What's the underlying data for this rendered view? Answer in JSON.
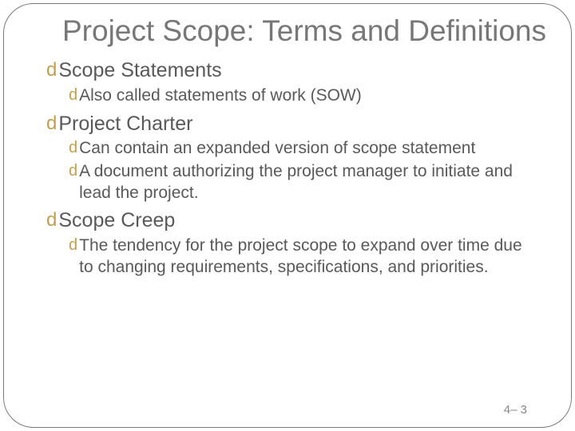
{
  "title": "Project Scope: Terms and Definitions",
  "items": [
    {
      "label": "Scope Statements",
      "subs": [
        {
          "text": "Also called statements of work (SOW)"
        }
      ]
    },
    {
      "label": "Project Charter",
      "subs": [
        {
          "text": "Can contain an expanded version of scope statement"
        },
        {
          "text": "A document authorizing the project manager to initiate and lead the project."
        }
      ]
    },
    {
      "label": "Scope Creep",
      "subs": [
        {
          "text": "The tendency for the project scope to expand over time due to changing requirements, specifications, and priorities."
        }
      ]
    }
  ],
  "pageNumber": "4– 3",
  "colors": {
    "bullet": "#c0a14a",
    "title": "#777777",
    "body": "#595959",
    "border": "#7a7a7a"
  }
}
